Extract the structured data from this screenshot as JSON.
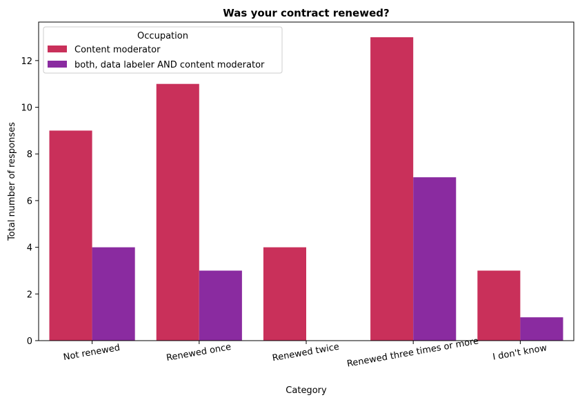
{
  "chart_data": {
    "type": "bar",
    "title": "Was your contract renewed?",
    "xlabel": "Category",
    "ylabel": "Total number of responses",
    "categories": [
      "Not renewed",
      "Renewed once",
      "Renewed twice",
      "Renewed three times or more",
      "I don't know"
    ],
    "series": [
      {
        "name": "Content moderator",
        "color": "#c9305a",
        "values": [
          9,
          11,
          4,
          13,
          3
        ]
      },
      {
        "name": "both, data labeler AND content moderator",
        "color": "#8a2ba0",
        "values": [
          4,
          3,
          0,
          7,
          1
        ]
      }
    ],
    "ylim": [
      0,
      13.65
    ],
    "yticks": [
      0,
      2,
      4,
      6,
      8,
      10,
      12
    ],
    "legend": {
      "title": "Occupation",
      "placement": "top-left"
    },
    "grid": false
  }
}
